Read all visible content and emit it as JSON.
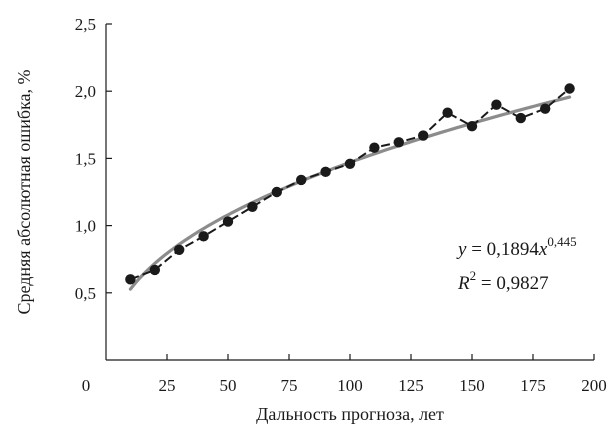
{
  "chart_data": {
    "type": "scatter",
    "title": "",
    "xlabel": "Дальность прогноза, лет",
    "ylabel": "Средняя абсолютная ошибка, %",
    "xlim": [
      0,
      200
    ],
    "ylim": [
      0,
      2.5
    ],
    "x_ticks": [
      0,
      25,
      50,
      75,
      100,
      125,
      150,
      175,
      200
    ],
    "x_tick_labels": [
      "0",
      "25",
      "50",
      "75",
      "100",
      "125",
      "150",
      "175",
      "200"
    ],
    "y_ticks": [
      0.5,
      1.0,
      1.5,
      2.0,
      2.5
    ],
    "y_tick_labels": [
      "0,5",
      "1,0",
      "1,5",
      "2,0",
      "2,5"
    ],
    "grid": false,
    "series": [
      {
        "style": "black-dashed-with-dots",
        "color": "#1a1a1a",
        "x": [
          10,
          20,
          30,
          40,
          50,
          60,
          70,
          80,
          90,
          100,
          110,
          120,
          130,
          140,
          150,
          160,
          170,
          180,
          190
        ],
        "y": [
          0.6,
          0.67,
          0.82,
          0.92,
          1.03,
          1.14,
          1.25,
          1.34,
          1.4,
          1.46,
          1.58,
          1.62,
          1.67,
          1.84,
          1.74,
          1.9,
          1.8,
          1.87,
          2.02
        ]
      }
    ],
    "trendline": {
      "kind": "power",
      "a": 0.1894,
      "b": 0.445,
      "x_range": [
        10,
        190
      ],
      "color": "#8c8c8c"
    },
    "annotations": {
      "equation": {
        "y_var": "y",
        "middle": " = 0,1894",
        "x_var": "x",
        "exponent": "0,445"
      },
      "r_squared": {
        "var": "R",
        "exponent": "2",
        "value": " = 0,9827"
      }
    }
  }
}
